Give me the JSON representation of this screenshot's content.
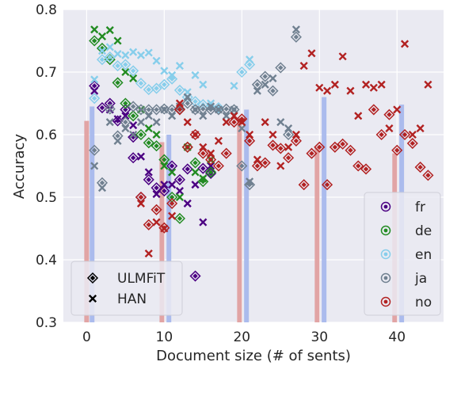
{
  "chart_data": {
    "type": "scatter",
    "title": "",
    "xlabel": "Document size (# of sents)",
    "ylabel": "Accuracy",
    "xlim": [
      -3,
      46
    ],
    "ylim": [
      0.3,
      0.8
    ],
    "xticks": [
      0,
      10,
      20,
      30,
      40
    ],
    "yticks": [
      0.3,
      0.4,
      0.5,
      0.6,
      0.7,
      0.8
    ],
    "xtick_labels": [
      "0",
      "10",
      "20",
      "30",
      "40"
    ],
    "ytick_labels": [
      "0.3",
      "0.4",
      "0.5",
      "0.6",
      "0.7",
      "0.8"
    ],
    "grid": true,
    "background": "#eaeaf2",
    "legend_models": {
      "placement": "bottom-left",
      "entries": [
        {
          "label": "ULMFiT",
          "marker": "diamond"
        },
        {
          "label": "HAN",
          "marker": "x"
        }
      ]
    },
    "legend_languages": {
      "placement": "bottom-right",
      "entries": [
        {
          "label": "fr",
          "color": "#4b0082"
        },
        {
          "label": "de",
          "color": "#228b22"
        },
        {
          "label": "en",
          "color": "#87ceeb"
        },
        {
          "label": "ja",
          "color": "#708090"
        },
        {
          "label": "no",
          "color": "#b22222"
        }
      ]
    },
    "bars": [
      {
        "x": 0.0,
        "value": 0.622,
        "color": "#e0a0a0"
      },
      {
        "x": 0.7,
        "value": 0.645,
        "color": "#a8b8ec"
      },
      {
        "x": 9.7,
        "value": 0.588,
        "color": "#e0a0a0"
      },
      {
        "x": 10.6,
        "value": 0.6,
        "color": "#a8b8ec"
      },
      {
        "x": 19.7,
        "value": 0.622,
        "color": "#e0a0a0"
      },
      {
        "x": 20.6,
        "value": 0.64,
        "color": "#a8b8ec"
      },
      {
        "x": 29.7,
        "value": 0.58,
        "color": "#e0a0a0"
      },
      {
        "x": 30.6,
        "value": 0.66,
        "color": "#a8b8ec"
      },
      {
        "x": 39.7,
        "value": 0.57,
        "color": "#e0a0a0"
      },
      {
        "x": 40.6,
        "value": 0.648,
        "color": "#a8b8ec"
      }
    ],
    "series": [
      {
        "name": "fr",
        "color": "#4b0082",
        "ulmfit": [
          [
            1,
            0.678
          ],
          [
            2,
            0.643
          ],
          [
            3,
            0.65
          ],
          [
            4,
            0.622
          ],
          [
            5,
            0.64
          ],
          [
            6,
            0.596
          ],
          [
            6,
            0.563
          ],
          [
            7,
            0.5
          ],
          [
            8,
            0.528
          ],
          [
            9,
            0.515
          ],
          [
            10,
            0.51
          ],
          [
            11,
            0.55
          ],
          [
            12,
            0.528
          ],
          [
            13,
            0.545
          ],
          [
            14,
            0.374
          ],
          [
            15,
            0.546
          ],
          [
            16,
            0.538
          ]
        ],
        "han": [
          [
            1,
            0.67
          ],
          [
            3,
            0.64
          ],
          [
            4,
            0.625
          ],
          [
            5,
            0.63
          ],
          [
            6,
            0.615
          ],
          [
            7,
            0.565
          ],
          [
            8,
            0.54
          ],
          [
            9,
            0.505
          ],
          [
            10,
            0.52
          ],
          [
            11,
            0.52
          ],
          [
            12,
            0.51
          ],
          [
            13,
            0.49
          ],
          [
            14,
            0.52
          ],
          [
            15,
            0.46
          ],
          [
            16,
            0.55
          ]
        ]
      },
      {
        "name": "de",
        "color": "#228b22",
        "ulmfit": [
          [
            1,
            0.75
          ],
          [
            2,
            0.738
          ],
          [
            3,
            0.72
          ],
          [
            4,
            0.683
          ],
          [
            5,
            0.65
          ],
          [
            6,
            0.63
          ],
          [
            7,
            0.6
          ],
          [
            8,
            0.587
          ],
          [
            9,
            0.582
          ],
          [
            10,
            0.56
          ],
          [
            11,
            0.5
          ],
          [
            12,
            0.466
          ],
          [
            13,
            0.58
          ],
          [
            14,
            0.555
          ],
          [
            15,
            0.525
          ],
          [
            16,
            0.54
          ]
        ],
        "han": [
          [
            1,
            0.768
          ],
          [
            2,
            0.757
          ],
          [
            3,
            0.767
          ],
          [
            4,
            0.75
          ],
          [
            5,
            0.7
          ],
          [
            6,
            0.69
          ],
          [
            7,
            0.64
          ],
          [
            8,
            0.61
          ],
          [
            9,
            0.6
          ],
          [
            10,
            0.55
          ],
          [
            11,
            0.54
          ],
          [
            12,
            0.5
          ],
          [
            13,
            0.58
          ],
          [
            14,
            0.54
          ],
          [
            15,
            0.53
          ],
          [
            16,
            0.56
          ]
        ]
      },
      {
        "name": "en",
        "color": "#87ceeb",
        "ulmfit": [
          [
            1,
            0.658
          ],
          [
            2,
            0.72
          ],
          [
            3,
            0.724
          ],
          [
            4,
            0.71
          ],
          [
            5,
            0.712
          ],
          [
            6,
            0.702
          ],
          [
            7,
            0.682
          ],
          [
            8,
            0.672
          ],
          [
            9,
            0.674
          ],
          [
            10,
            0.68
          ],
          [
            11,
            0.689
          ],
          [
            12,
            0.671
          ],
          [
            13,
            0.66
          ],
          [
            14,
            0.653
          ],
          [
            15,
            0.648
          ],
          [
            17,
            0.643
          ],
          [
            20,
            0.7
          ],
          [
            21,
            0.712
          ]
        ],
        "han": [
          [
            1,
            0.688
          ],
          [
            2,
            0.734
          ],
          [
            3,
            0.74
          ],
          [
            4,
            0.729
          ],
          [
            5,
            0.727
          ],
          [
            6,
            0.732
          ],
          [
            7,
            0.727
          ],
          [
            8,
            0.731
          ],
          [
            9,
            0.718
          ],
          [
            10,
            0.702
          ],
          [
            11,
            0.695
          ],
          [
            12,
            0.71
          ],
          [
            13,
            0.668
          ],
          [
            14,
            0.695
          ],
          [
            15,
            0.68
          ],
          [
            16,
            0.65
          ],
          [
            19,
            0.678
          ],
          [
            21,
            0.72
          ]
        ]
      },
      {
        "name": "ja",
        "color": "#708090",
        "ulmfit": [
          [
            1,
            0.575
          ],
          [
            2,
            0.523
          ],
          [
            3,
            0.641
          ],
          [
            4,
            0.598
          ],
          [
            5,
            0.62
          ],
          [
            6,
            0.645
          ],
          [
            7,
            0.64
          ],
          [
            8,
            0.64
          ],
          [
            9,
            0.64
          ],
          [
            10,
            0.641
          ],
          [
            11,
            0.64
          ],
          [
            12,
            0.641
          ],
          [
            13,
            0.65
          ],
          [
            14,
            0.64
          ],
          [
            15,
            0.641
          ],
          [
            16,
            0.64
          ],
          [
            17,
            0.64
          ],
          [
            18,
            0.641
          ],
          [
            19,
            0.64
          ],
          [
            20,
            0.55
          ],
          [
            21,
            0.52
          ],
          [
            22,
            0.68
          ],
          [
            23,
            0.693
          ],
          [
            24,
            0.67
          ],
          [
            25,
            0.707
          ],
          [
            26,
            0.6
          ],
          [
            27,
            0.756
          ]
        ],
        "han": [
          [
            1,
            0.55
          ],
          [
            2,
            0.515
          ],
          [
            3,
            0.62
          ],
          [
            4,
            0.59
          ],
          [
            5,
            0.61
          ],
          [
            6,
            0.6
          ],
          [
            7,
            0.62
          ],
          [
            8,
            0.63
          ],
          [
            9,
            0.62
          ],
          [
            10,
            0.64
          ],
          [
            11,
            0.63
          ],
          [
            12,
            0.645
          ],
          [
            13,
            0.66
          ],
          [
            14,
            0.64
          ],
          [
            15,
            0.63
          ],
          [
            16,
            0.645
          ],
          [
            17,
            0.64
          ],
          [
            18,
            0.63
          ],
          [
            19,
            0.64
          ],
          [
            20,
            0.61
          ],
          [
            21,
            0.525
          ],
          [
            22,
            0.67
          ],
          [
            23,
            0.68
          ],
          [
            24,
            0.69
          ],
          [
            25,
            0.62
          ],
          [
            26,
            0.61
          ],
          [
            27,
            0.768
          ]
        ]
      },
      {
        "name": "no",
        "color": "#b22222",
        "ulmfit": [
          [
            7,
            0.5
          ],
          [
            8,
            0.456
          ],
          [
            9,
            0.48
          ],
          [
            10,
            0.451
          ],
          [
            11,
            0.49
          ],
          [
            12,
            0.64
          ],
          [
            13,
            0.58
          ],
          [
            14,
            0.6
          ],
          [
            15,
            0.57
          ],
          [
            16,
            0.56
          ],
          [
            17,
            0.55
          ],
          [
            18,
            0.57
          ],
          [
            19,
            0.62
          ],
          [
            20,
            0.625
          ],
          [
            21,
            0.59
          ],
          [
            22,
            0.55
          ],
          [
            23,
            0.555
          ],
          [
            24,
            0.583
          ],
          [
            25,
            0.578
          ],
          [
            26,
            0.563
          ],
          [
            27,
            0.59
          ],
          [
            28,
            0.52
          ],
          [
            29,
            0.57
          ],
          [
            30,
            0.58
          ],
          [
            31,
            0.52
          ],
          [
            32,
            0.58
          ],
          [
            33,
            0.585
          ],
          [
            34,
            0.575
          ],
          [
            35,
            0.55
          ],
          [
            36,
            0.545
          ],
          [
            37,
            0.64
          ],
          [
            38,
            0.6
          ],
          [
            39,
            0.632
          ],
          [
            40,
            0.575
          ],
          [
            41,
            0.6
          ],
          [
            42,
            0.586
          ],
          [
            43,
            0.548
          ],
          [
            44,
            0.535
          ]
        ],
        "han": [
          [
            7,
            0.49
          ],
          [
            8,
            0.41
          ],
          [
            9,
            0.46
          ],
          [
            10,
            0.45
          ],
          [
            11,
            0.47
          ],
          [
            12,
            0.65
          ],
          [
            13,
            0.62
          ],
          [
            14,
            0.6
          ],
          [
            15,
            0.58
          ],
          [
            16,
            0.57
          ],
          [
            17,
            0.59
          ],
          [
            18,
            0.62
          ],
          [
            19,
            0.63
          ],
          [
            20,
            0.62
          ],
          [
            21,
            0.6
          ],
          [
            22,
            0.56
          ],
          [
            23,
            0.62
          ],
          [
            24,
            0.6
          ],
          [
            25,
            0.55
          ],
          [
            26,
            0.58
          ],
          [
            27,
            0.6
          ],
          [
            28,
            0.71
          ],
          [
            29,
            0.73
          ],
          [
            30,
            0.675
          ],
          [
            31,
            0.67
          ],
          [
            32,
            0.68
          ],
          [
            33,
            0.725
          ],
          [
            34,
            0.67
          ],
          [
            35,
            0.63
          ],
          [
            36,
            0.68
          ],
          [
            37,
            0.675
          ],
          [
            38,
            0.68
          ],
          [
            39,
            0.61
          ],
          [
            40,
            0.64
          ],
          [
            41,
            0.745
          ],
          [
            42,
            0.6
          ],
          [
            43,
            0.61
          ],
          [
            44,
            0.68
          ]
        ]
      }
    ]
  }
}
